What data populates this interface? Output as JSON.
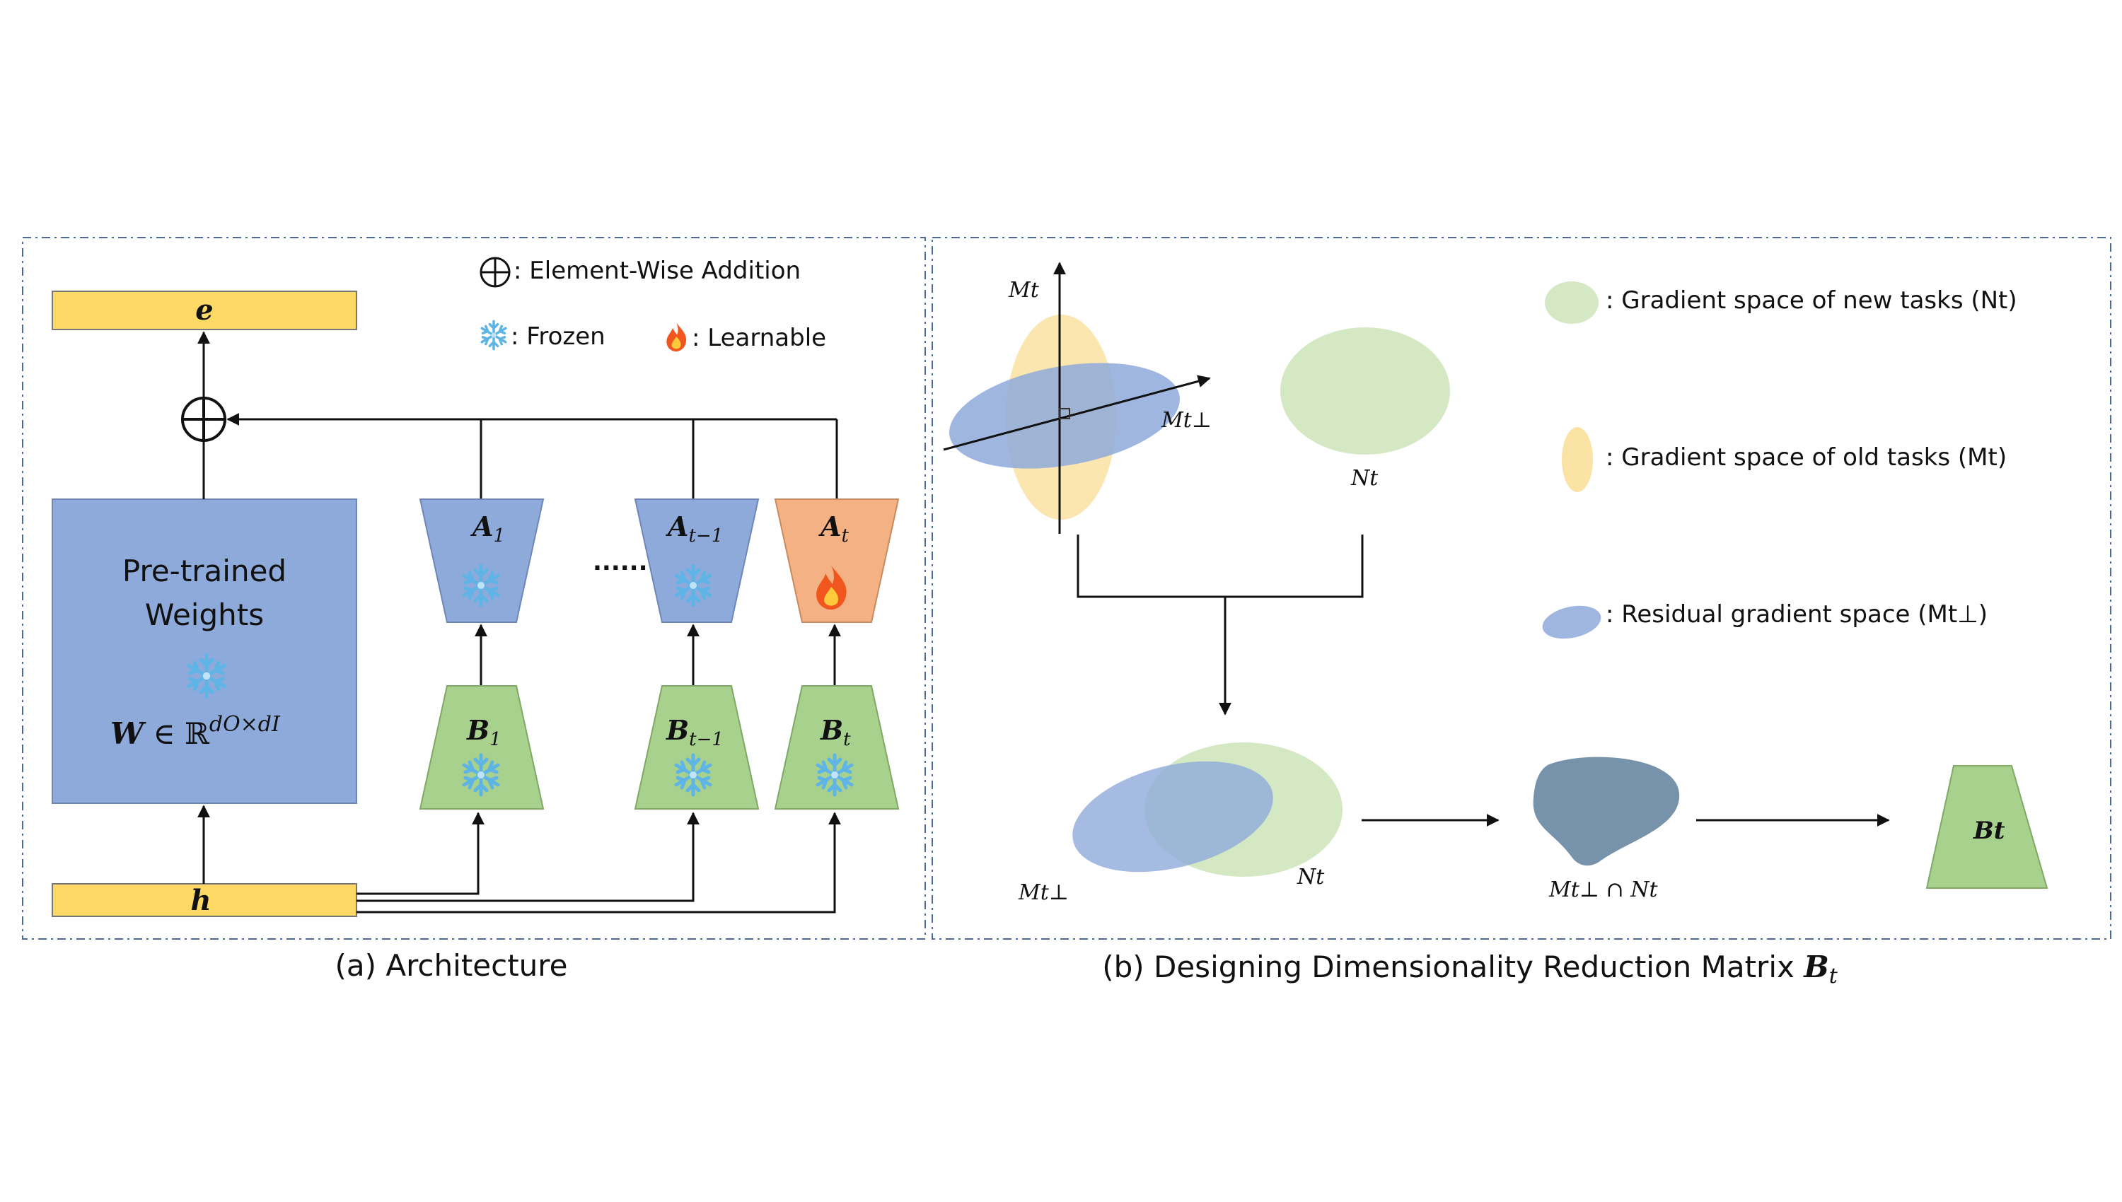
{
  "panel_a": {
    "caption": "(a) Architecture",
    "legend": {
      "addition_label": ": Element-Wise Addition",
      "frozen_label": ": Frozen",
      "learnable_label": ": Learnable"
    },
    "output_label": "e",
    "input_label": "h",
    "pretrained": {
      "line1": "Pre-trained",
      "line2": "Weights",
      "formula_main": "W",
      "formula_set": " ∈ ℝ",
      "formula_sup": "dO×dI"
    },
    "ellipsis": "......",
    "adapters": [
      {
        "a_label": "A",
        "a_sub": "1",
        "b_label": "B",
        "b_sub": "1",
        "state": "frozen"
      },
      {
        "a_label": "A",
        "a_sub": "t−1",
        "b_label": "B",
        "b_sub": "t−1",
        "state": "frozen"
      },
      {
        "a_label": "A",
        "a_sub": "t",
        "b_label": "B",
        "b_sub": "t",
        "state": "learnable"
      }
    ]
  },
  "panel_b": {
    "caption_prefix": "(b) Designing Dimensionality Reduction Matrix ",
    "caption_symbol": "B",
    "caption_sub": "t",
    "labels": {
      "m_t": "Mt",
      "m_t_perp": "Mt⊥",
      "n_t": "Nt",
      "intersection": "Mt⊥ ∩ Nt",
      "b_t": "Bt"
    },
    "legend": [
      {
        "text": ": Gradient space of new tasks (Nt)",
        "color": "#d5e8c4"
      },
      {
        "text": ": Gradient space of old tasks (Mt)",
        "color": "#fbe3a6"
      },
      {
        "text": ": Residual gradient space (Mt⊥)",
        "color": "#9fb6e1"
      }
    ]
  },
  "colors": {
    "blue_block": "#8eaadb",
    "green_block": "#a9d18e",
    "orange_block": "#f4b183",
    "yellow_bar": "#ffd966",
    "border_dash": "#4a6a9a"
  }
}
